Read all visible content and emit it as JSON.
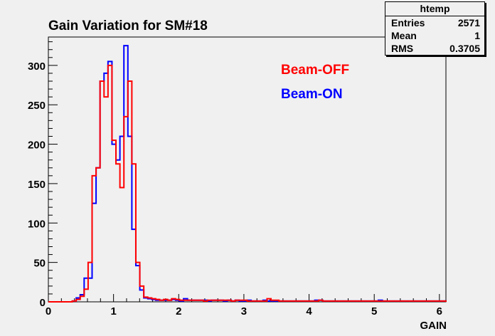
{
  "chart_data": {
    "type": "histogram",
    "title": "Gain Variation for SM#18",
    "xlabel": "GAIN",
    "ylabel": "",
    "xlim": [
      0,
      6.1
    ],
    "ylim": [
      0,
      336
    ],
    "xticks": [
      0,
      1,
      2,
      3,
      4,
      5,
      6
    ],
    "yticks": [
      0,
      50,
      100,
      150,
      200,
      250,
      300
    ],
    "bin_width": 0.061,
    "legend_placement": "top-center",
    "series": [
      {
        "name": "Beam-OFF",
        "color": "#ff0000",
        "values": [
          0,
          0,
          0,
          0,
          0,
          0,
          1,
          3,
          7,
          16,
          50,
          160,
          170,
          280,
          260,
          300,
          205,
          175,
          145,
          235,
          280,
          175,
          50,
          20,
          6,
          5,
          4,
          3,
          2,
          3,
          2,
          4,
          3,
          2,
          2,
          2,
          2,
          2,
          2,
          1,
          2,
          2,
          2,
          2,
          2,
          2,
          1,
          2,
          2,
          2,
          1,
          1,
          1,
          1,
          1,
          4,
          2,
          2,
          1,
          1,
          1,
          1,
          1,
          1,
          1,
          1,
          1,
          1,
          2,
          1,
          1,
          1,
          1,
          1,
          1,
          1,
          1,
          1,
          1,
          1,
          1,
          1,
          1,
          1,
          1,
          1,
          1,
          1,
          1,
          1,
          1,
          1,
          1,
          1,
          1,
          1,
          1,
          1,
          1,
          1
        ]
      },
      {
        "name": "Beam-ON",
        "color": "#0000ff",
        "values": [
          0,
          0,
          0,
          0,
          0,
          0,
          1,
          5,
          9,
          30,
          30,
          125,
          170,
          280,
          290,
          305,
          200,
          180,
          210,
          325,
          210,
          92,
          46,
          15,
          5,
          4,
          3,
          2,
          2,
          2,
          2,
          3,
          2,
          1,
          4,
          2,
          2,
          2,
          2,
          2,
          1,
          2,
          2,
          2,
          1,
          2,
          1,
          2,
          1,
          1,
          2,
          1,
          1,
          1,
          2,
          1,
          1,
          1,
          1,
          1,
          1,
          1,
          1,
          1,
          1,
          1,
          1,
          2,
          2,
          1,
          1,
          1,
          1,
          1,
          1,
          1,
          1,
          1,
          1,
          1,
          1,
          1,
          1,
          2,
          1,
          1,
          1,
          1,
          1,
          1,
          1,
          1,
          1,
          1,
          1,
          1,
          1,
          1,
          1,
          1
        ]
      }
    ]
  },
  "stats": {
    "name": "htemp",
    "rows": [
      {
        "label": "Entries",
        "value": "2571"
      },
      {
        "label": "Mean",
        "value": "1"
      },
      {
        "label": "RMS",
        "value": "0.3705"
      }
    ]
  }
}
